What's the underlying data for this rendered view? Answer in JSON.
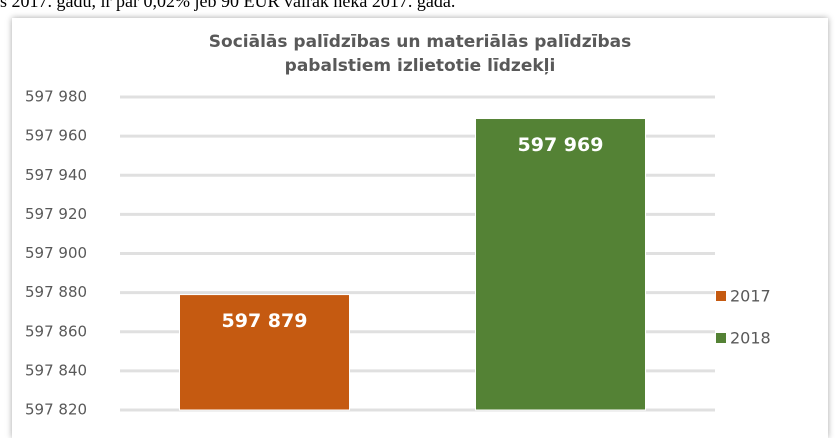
{
  "caption": "s 2017. gadu, ir par 0,02% jeb 90 EUR vairāk nekā 2017. gadā.",
  "chart_data": {
    "type": "bar",
    "title": "Sociālās palīdzības un materiālās palīdzības pabalstiem izlietotie līdzekļi",
    "categories": [
      null
    ],
    "series": [
      {
        "name": "2017",
        "color": "#c55a11",
        "values": [
          597879
        ],
        "value_labels": [
          "597 879"
        ]
      },
      {
        "name": "2018",
        "color": "#548235",
        "values": [
          597969
        ],
        "value_labels": [
          "597 969"
        ]
      }
    ],
    "ylim": [
      597820,
      597980
    ],
    "yticks": [
      {
        "value": 597820,
        "label": "597 820"
      },
      {
        "value": 597840,
        "label": "597 840"
      },
      {
        "value": 597860,
        "label": "597 860"
      },
      {
        "value": 597880,
        "label": "597 880"
      },
      {
        "value": 597900,
        "label": "597 900"
      },
      {
        "value": 597920,
        "label": "597 920"
      },
      {
        "value": 597940,
        "label": "597 940"
      },
      {
        "value": 597960,
        "label": "597 960"
      },
      {
        "value": 597980,
        "label": "597 980"
      }
    ],
    "grid": true,
    "legend": "right"
  }
}
